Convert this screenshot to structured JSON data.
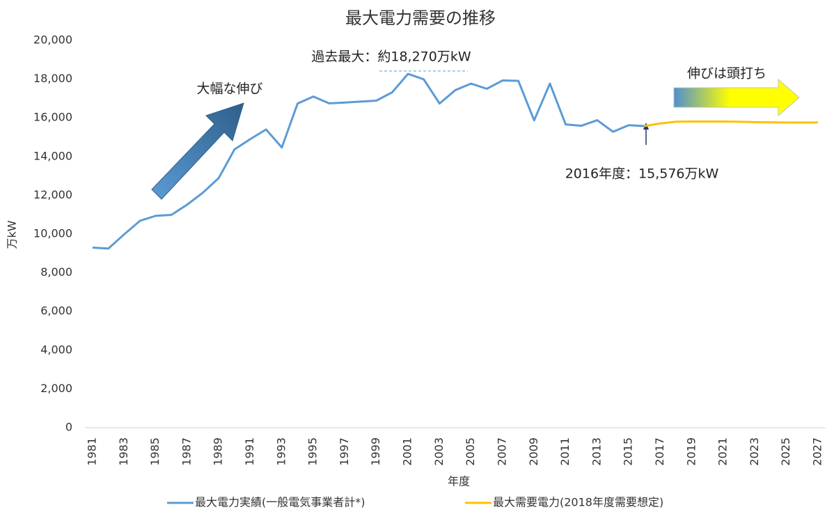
{
  "chart_data": {
    "type": "line",
    "title": "最大電力需要の推移",
    "x_label": "年度",
    "y_label": "万kW",
    "x": [
      1981,
      1982,
      1983,
      1984,
      1985,
      1986,
      1987,
      1988,
      1989,
      1990,
      1991,
      1992,
      1993,
      1994,
      1995,
      1996,
      1997,
      1998,
      1999,
      2000,
      2001,
      2002,
      2003,
      2004,
      2005,
      2006,
      2007,
      2008,
      2009,
      2010,
      2011,
      2012,
      2013,
      2014,
      2015,
      2016,
      2017,
      2018,
      2019,
      2020,
      2021,
      2022,
      2023,
      2024,
      2025,
      2026,
      2027
    ],
    "series": [
      {
        "name": "最大電力実績(一般電気事業者計*)",
        "color": "#5b9bd5",
        "values": [
          9300,
          9250,
          9980,
          10680,
          10940,
          10990,
          11520,
          12140,
          12890,
          14370,
          14900,
          15400,
          14470,
          16740,
          17100,
          16750,
          16790,
          16840,
          16890,
          17320,
          18270,
          17990,
          16740,
          17430,
          17770,
          17500,
          17930,
          17910,
          15870,
          17770,
          15660,
          15590,
          15880,
          15280,
          15620,
          15576,
          null,
          null,
          null,
          null,
          null,
          null,
          null,
          null,
          null,
          null,
          null
        ]
      },
      {
        "name": "最大需要電力(2018年度需要想定)",
        "color": "#ffc000",
        "values": [
          null,
          null,
          null,
          null,
          null,
          null,
          null,
          null,
          null,
          null,
          null,
          null,
          null,
          null,
          null,
          null,
          null,
          null,
          null,
          null,
          null,
          null,
          null,
          null,
          null,
          null,
          null,
          null,
          null,
          null,
          null,
          null,
          null,
          null,
          null,
          15576,
          15710,
          15800,
          15810,
          15810,
          15810,
          15800,
          15780,
          15770,
          15760,
          15760,
          15760
        ]
      }
    ],
    "xlim": [
      1981,
      2027
    ],
    "xticks": [
      1981,
      1983,
      1985,
      1987,
      1989,
      1991,
      1993,
      1995,
      1997,
      1999,
      2001,
      2003,
      2005,
      2007,
      2009,
      2011,
      2013,
      2015,
      2017,
      2019,
      2021,
      2023,
      2025,
      2027
    ],
    "ylim": [
      0,
      20000
    ],
    "yticks": [
      0,
      {
        "value": 2000,
        "label": "2,000"
      },
      {
        "value": 4000,
        "label": "4,000"
      },
      {
        "value": 6000,
        "label": "6,000"
      },
      {
        "value": 8000,
        "label": "8,000"
      },
      {
        "value": 10000,
        "label": "10,000"
      },
      {
        "value": 12000,
        "label": "12,000"
      },
      {
        "value": 14000,
        "label": "14,000"
      },
      {
        "value": 16000,
        "label": "16,000"
      },
      {
        "value": 18000,
        "label": "18,000"
      },
      {
        "value": 20000,
        "label": "20,000"
      }
    ],
    "annotations": [
      "過去最大：約18,270万kW",
      "大幅な伸び",
      "伸びは頭打ち",
      "2016年度：15,576万kW"
    ]
  }
}
